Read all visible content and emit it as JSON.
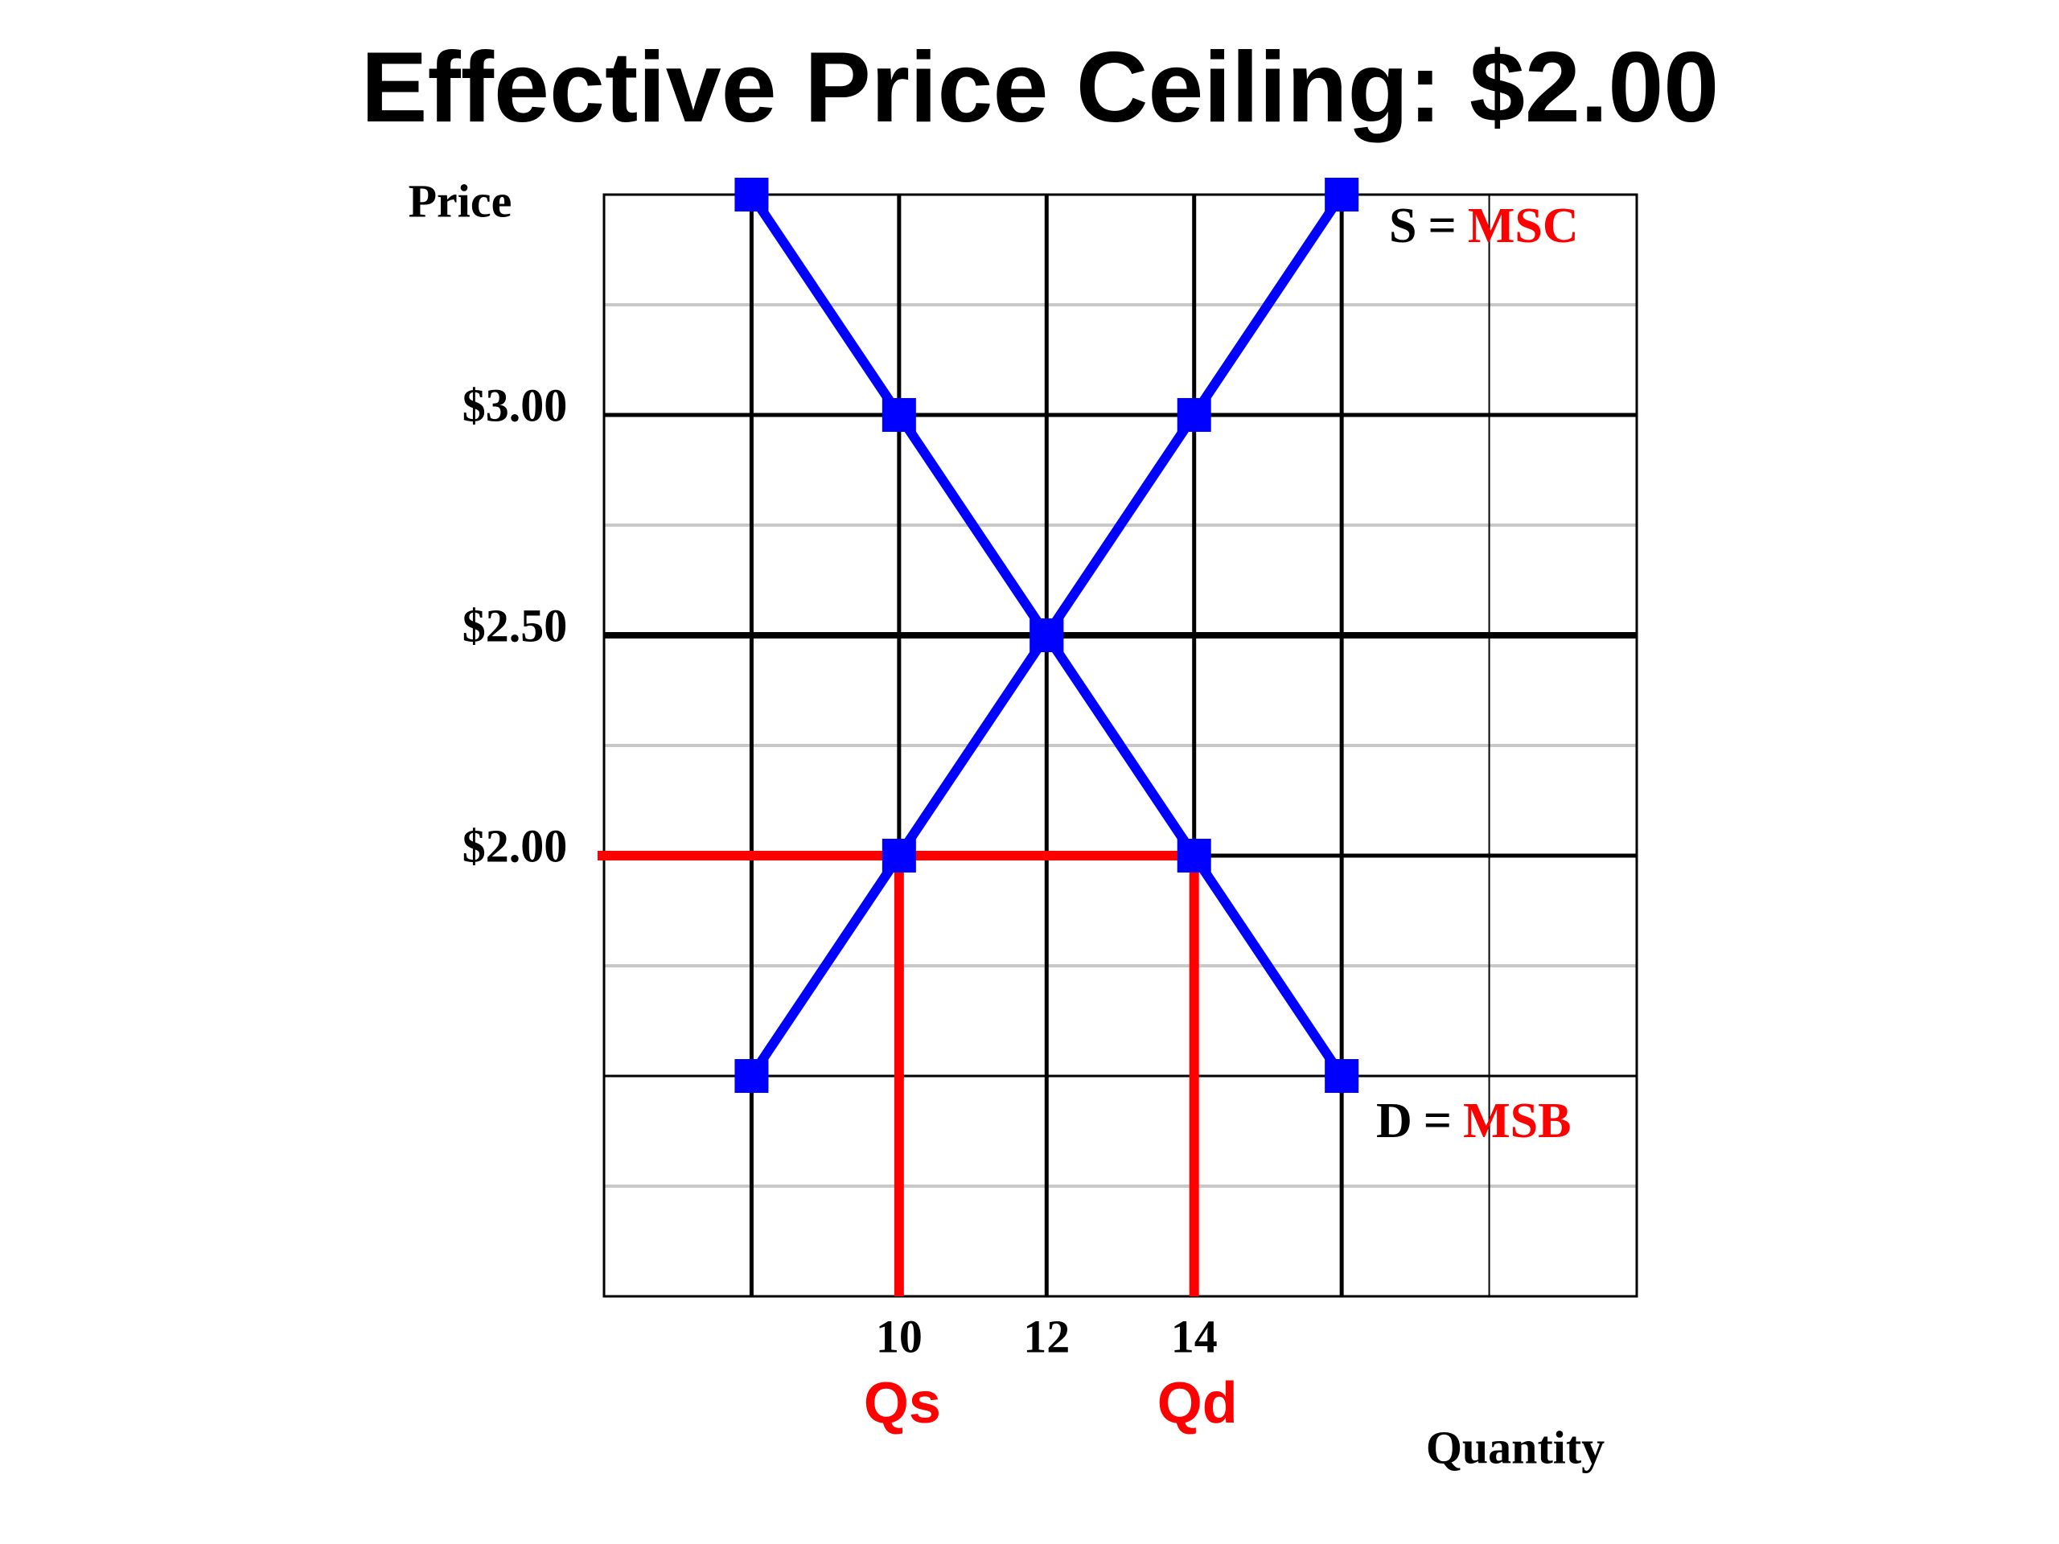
{
  "chart_data": {
    "type": "line",
    "title": "Effective Price Ceiling: $2.00",
    "y_label": "Price",
    "x_label": "Quantity",
    "xlim": [
      6,
      20
    ],
    "ylim": [
      1,
      3.5
    ],
    "xticks": [
      10,
      12,
      14
    ],
    "xgrid_unlabeled": [
      8,
      16,
      18
    ],
    "yticks": [
      {
        "value": 2,
        "label": "$2.00"
      },
      {
        "value": 2.5,
        "label": "$2.50"
      },
      {
        "value": 3,
        "label": "$3.00"
      }
    ],
    "ygrid_unlabeled": [
      1.5
    ],
    "ygrid_minor": [
      1.25,
      1.75,
      2.25,
      2.75,
      3.25
    ],
    "grid": true,
    "series": [
      {
        "symbol": "S",
        "sep": "=",
        "label": "MSC",
        "color": "#0000ff",
        "x": [
          8,
          10,
          12,
          14,
          16
        ],
        "values": [
          1.5,
          2,
          2.5,
          3,
          3.5
        ]
      },
      {
        "symbol": "D",
        "sep": "=",
        "label": "MSB",
        "color": "#0000ff",
        "x": [
          8,
          10,
          12,
          14,
          16
        ],
        "values": [
          3.5,
          3,
          2.5,
          2,
          1.5
        ]
      }
    ],
    "price_ceiling": {
      "value": 2,
      "color": "#ff0000",
      "quantity_supplied": {
        "x": 10,
        "label": "Qs"
      },
      "quantity_demanded": {
        "x": 14,
        "label": "Qd"
      }
    }
  }
}
